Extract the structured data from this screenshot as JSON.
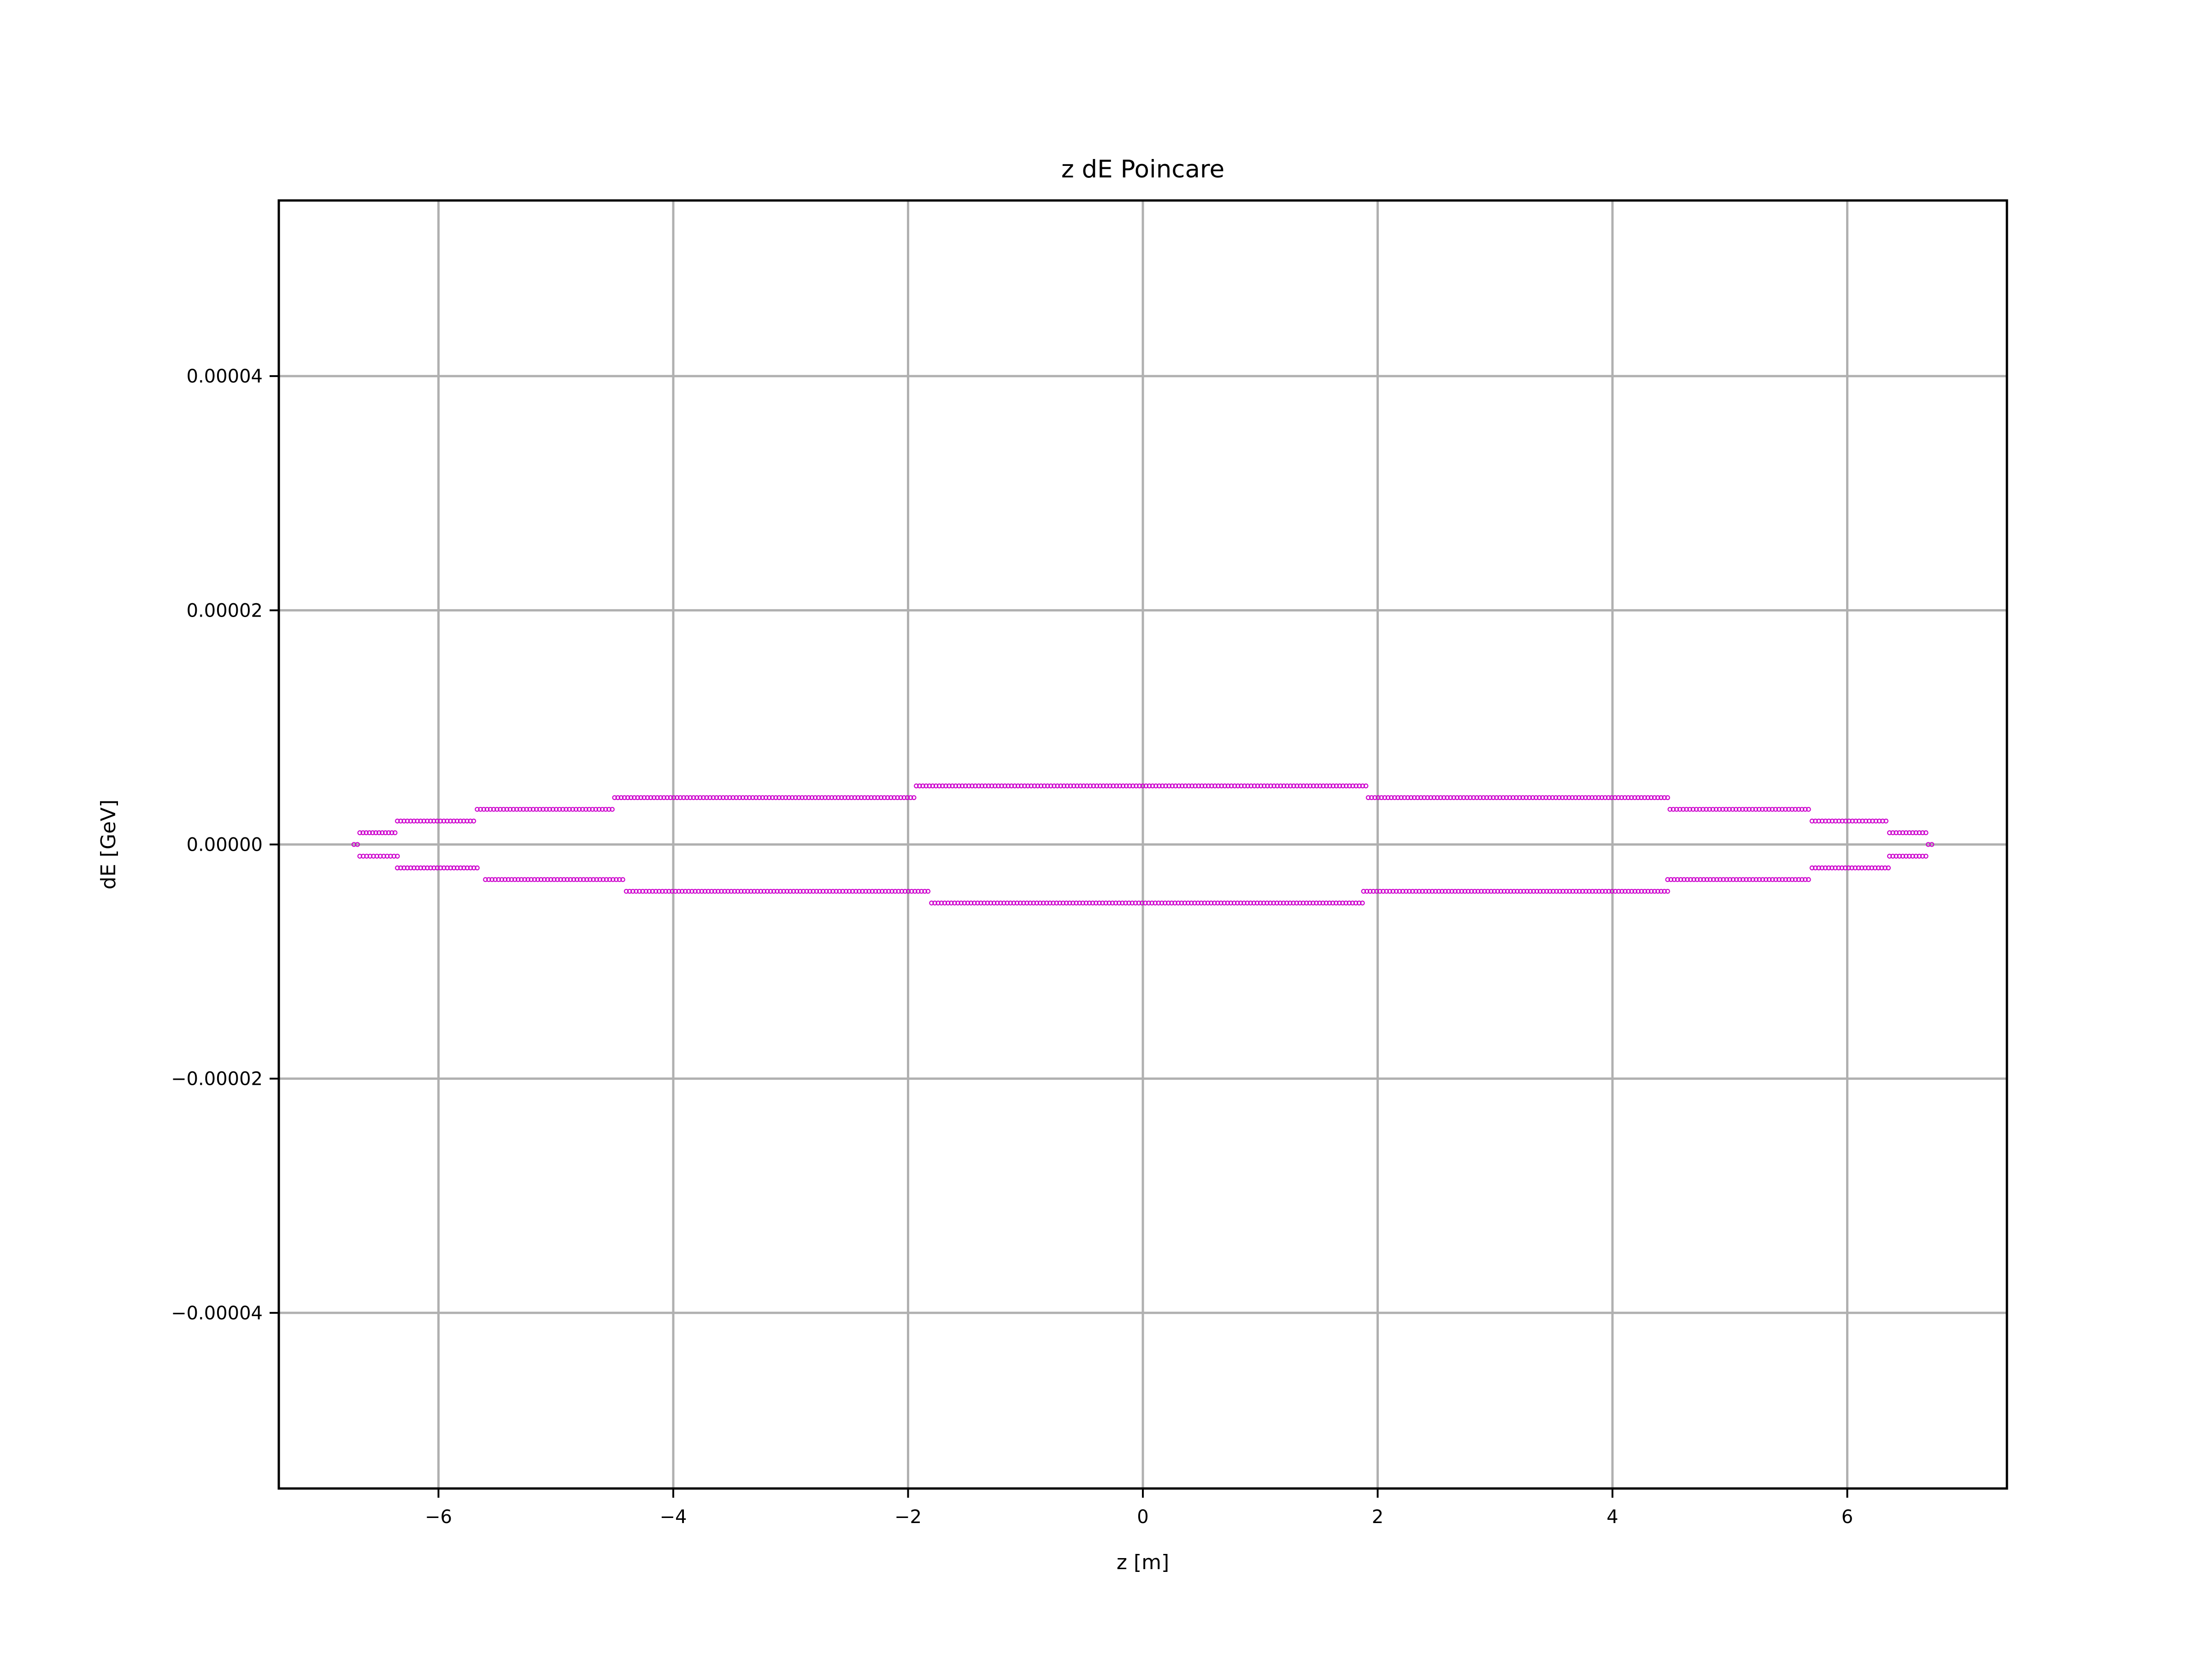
{
  "chart_data": {
    "type": "scatter",
    "title": "z dE Poincare",
    "xlabel": "z [m]",
    "ylabel": "dE [GeV]",
    "xlim": [
      -7.36,
      7.36
    ],
    "ylim": [
      -5.5e-05,
      5.5e-05
    ],
    "xticks": [
      -6,
      -4,
      -2,
      0,
      2,
      4,
      6
    ],
    "xtick_labels": [
      "−6",
      "−4",
      "−2",
      "0",
      "2",
      "4",
      "6"
    ],
    "yticks": [
      -4e-05,
      -2e-05,
      0,
      2e-05,
      4e-05
    ],
    "ytick_labels": [
      "−0.00004",
      "−0.00002",
      "0.00000",
      "0.00002",
      "0.00004"
    ],
    "grid": true,
    "marker_color": "#cc00cc",
    "series": [
      {
        "segments": [
          {
            "y": 5e-06,
            "x_start": -1.93,
            "x_end": 1.9
          },
          {
            "y": 4e-06,
            "x_start": -4.5,
            "x_end": -1.95
          },
          {
            "y": 4e-06,
            "x_start": 1.92,
            "x_end": 4.47
          },
          {
            "y": 3e-06,
            "x_start": -5.67,
            "x_end": -4.52
          },
          {
            "y": 3e-06,
            "x_start": 4.49,
            "x_end": 5.67
          },
          {
            "y": 2e-06,
            "x_start": -6.35,
            "x_end": -5.7
          },
          {
            "y": 2e-06,
            "x_start": 5.7,
            "x_end": 6.33
          },
          {
            "y": 1e-06,
            "x_start": -6.67,
            "x_end": -6.37
          },
          {
            "y": 1e-06,
            "x_start": 6.36,
            "x_end": 6.67
          },
          {
            "y": 0.0,
            "x_start": -6.72,
            "x_end": -6.69
          },
          {
            "y": 0.0,
            "x_start": 6.69,
            "x_end": 6.72
          },
          {
            "y": -1e-06,
            "x_start": -6.67,
            "x_end": -6.35
          },
          {
            "y": -1e-06,
            "x_start": 6.36,
            "x_end": 6.67
          },
          {
            "y": -2e-06,
            "x_start": -6.35,
            "x_end": -5.67
          },
          {
            "y": -2e-06,
            "x_start": 5.7,
            "x_end": 6.35
          },
          {
            "y": -3e-06,
            "x_start": -5.6,
            "x_end": -4.43
          },
          {
            "y": -3e-06,
            "x_start": 4.47,
            "x_end": 5.67
          },
          {
            "y": -4e-06,
            "x_start": -4.4,
            "x_end": -1.83
          },
          {
            "y": -4e-06,
            "x_start": 1.88,
            "x_end": 4.47
          },
          {
            "y": -5e-06,
            "x_start": -1.8,
            "x_end": 1.87
          }
        ]
      }
    ]
  }
}
